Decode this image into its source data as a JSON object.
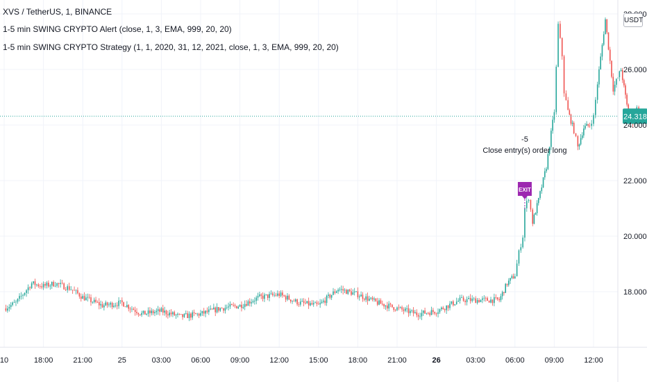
{
  "header": {
    "symbol_line": "XVS / TetherUS, 1, BINANCE",
    "indicator_1": "1-5 min SWING CRYPTO Alert  (close, 1, 3, EMA, 999, 20, 20)",
    "indicator_2": "1-5 min SWING CRYPTO Strategy  (1, 1, 2020, 31, 12, 2021, close, 1, 3, EMA, 999, 20, 20)"
  },
  "currency": "USDT",
  "colors": {
    "up": "#26a69a",
    "down": "#ef5350",
    "price_line": "#26a69a",
    "marker": "#9c27b0"
  },
  "chart_data": {
    "type": "line",
    "title": "XVS / TetherUS, 1, BINANCE",
    "x_tick_labels": [
      "10",
      "18:00",
      "21:00",
      "25",
      "03:00",
      "06:00",
      "09:00",
      "12:00",
      "15:00",
      "18:00",
      "21:00",
      "26",
      "03:00",
      "06:00",
      "09:00",
      "12:00"
    ],
    "bold_x_ticks": [
      "26"
    ],
    "y_tick_labels": [
      "28.000",
      "26.000",
      "24.000",
      "22.000",
      "20.000",
      "18.000"
    ],
    "ylim": [
      16.0,
      28.5
    ],
    "current_price": 24.318,
    "current_price_label": "24.318",
    "series": [
      {
        "x": [
          0,
          0.3,
          0.7,
          1.0,
          1.3,
          1.7,
          2.0,
          2.5,
          3.0,
          3.5,
          4.0,
          4.5,
          5.0,
          5.5,
          6.0,
          6.5,
          7.0,
          7.5,
          8.0,
          8.5,
          9.0,
          9.5,
          10.0,
          10.5,
          11.0,
          11.3,
          11.6,
          12.0,
          12.3,
          12.6,
          12.8,
          13.0,
          13.1,
          13.2,
          13.25,
          13.35,
          13.45,
          13.6,
          13.8,
          14.0,
          14.1,
          14.2,
          14.25,
          14.35,
          14.5,
          14.6,
          14.75,
          14.9,
          15.0,
          15.1,
          15.3,
          15.5,
          15.7,
          15.85,
          16.0,
          16.1,
          16.2,
          16.3,
          16.45
        ],
        "values": [
          17.4,
          17.6,
          18.3,
          18.2,
          18.3,
          18.1,
          17.8,
          17.5,
          17.6,
          17.2,
          17.3,
          17.1,
          17.2,
          17.4,
          17.5,
          17.8,
          17.9,
          17.6,
          17.5,
          18.1,
          17.9,
          17.6,
          17.4,
          17.2,
          17.3,
          17.5,
          17.7,
          17.7,
          17.7,
          17.7,
          18.3,
          18.6,
          19.4,
          20.0,
          21.0,
          21.4,
          20.5,
          21.3,
          22.5,
          24.5,
          27.6,
          26.5,
          25.2,
          24.5,
          23.8,
          23.2,
          23.9,
          24.0,
          24.3,
          25.5,
          27.8,
          25.3,
          26.0,
          24.7,
          24.1,
          24.6,
          24.3,
          24.3,
          23.8
        ],
        "volatility": 0.18
      }
    ],
    "annotations": [
      {
        "text": "-5",
        "at_x": 13.25,
        "at_price": 23.4
      },
      {
        "text": "Close entry(s) order long",
        "at_x": 13.25,
        "at_price": 23.0
      }
    ],
    "marker": {
      "text": "EXIT",
      "at_x": 13.25,
      "at_price": 21.7
    }
  }
}
